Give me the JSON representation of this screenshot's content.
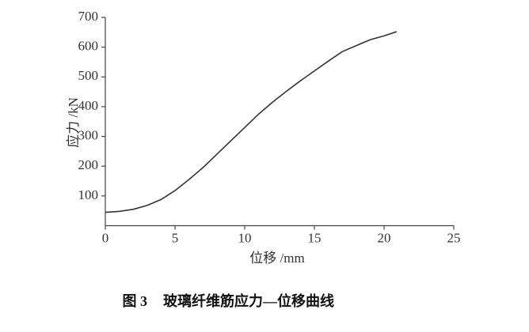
{
  "chart_data": {
    "type": "line",
    "x_label": "位移 /mm",
    "y_label": "应力 /kN",
    "caption_label": "图 3",
    "caption": "玻璃纤维筋应力—位移曲线",
    "x": [
      0,
      1,
      2,
      3,
      4,
      5,
      6,
      7,
      8,
      9,
      10,
      11,
      12,
      13,
      14,
      15,
      16,
      17,
      18,
      19,
      20,
      20.9
    ],
    "series": [
      {
        "name": "应力",
        "color": "#333333",
        "values": [
          45,
          48,
          55,
          68,
          88,
          118,
          155,
          195,
          240,
          285,
          330,
          375,
          415,
          452,
          487,
          520,
          553,
          585,
          605,
          625,
          638,
          652
        ]
      }
    ],
    "xlim": [
      0,
      25
    ],
    "ylim": [
      0,
      700
    ],
    "xticks": [
      0,
      5,
      10,
      15,
      20,
      25
    ],
    "yticks": [
      100,
      200,
      300,
      400,
      500,
      600,
      700
    ],
    "grid": false
  }
}
